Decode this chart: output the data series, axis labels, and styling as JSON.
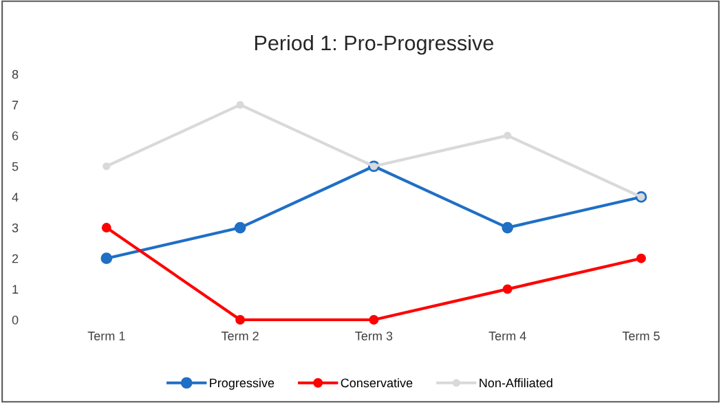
{
  "chart_data": {
    "type": "line",
    "title": "Period 1: Pro-Progressive",
    "categories": [
      "Term 1",
      "Term 2",
      "Term 3",
      "Term 4",
      "Term 5"
    ],
    "series": [
      {
        "name": "Progressive",
        "color": "#1f6fc5",
        "values": [
          2,
          3,
          5,
          3,
          4
        ]
      },
      {
        "name": "Conservative",
        "color": "#ff0000",
        "values": [
          3,
          0,
          0,
          1,
          2
        ]
      },
      {
        "name": "Non-Affiliated",
        "color": "#d9d9d9",
        "values": [
          5,
          7,
          5,
          6,
          4
        ]
      }
    ],
    "ylim": [
      0,
      8
    ],
    "yticks": [
      0,
      1,
      2,
      3,
      4,
      5,
      6,
      7,
      8
    ],
    "grid": false,
    "legend": "bottom",
    "marker": "circle",
    "line_style": "solid"
  }
}
